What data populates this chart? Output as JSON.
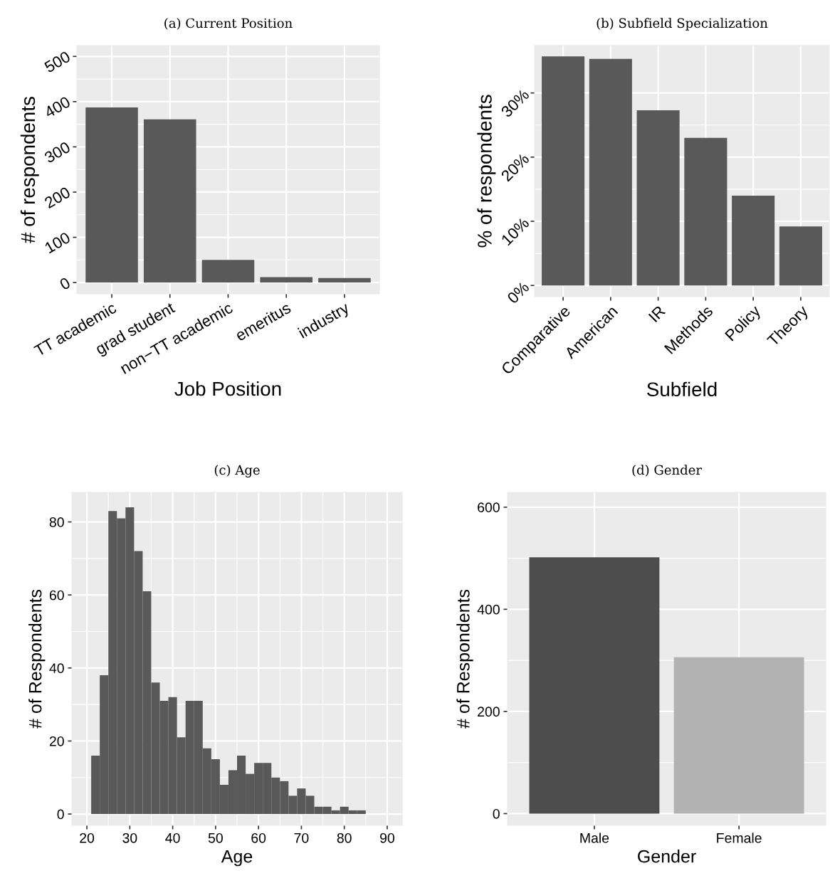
{
  "chart_data": [
    {
      "type": "bar",
      "title": "(a) Current Position",
      "xlabel": "Job Position",
      "ylabel": "# of respondents",
      "categories": [
        "TT academic",
        "grad student",
        "non−TT academic",
        "emeritus",
        "industry"
      ],
      "values": [
        387,
        361,
        50,
        12,
        10
      ],
      "color": "#595959",
      "ylim": [
        -25,
        524
      ],
      "yticks": [
        0,
        100,
        200,
        300,
        400,
        500
      ],
      "grid": true
    },
    {
      "type": "bar",
      "title": "(b) Subfield Specialization",
      "xlabel": "Subfield",
      "ylabel": "% of respondents",
      "categories": [
        "Comparative",
        "American",
        "IR",
        "Methods",
        "Policy",
        "Theory"
      ],
      "values": [
        35.7,
        35.3,
        27.3,
        23.0,
        14.0,
        9.2
      ],
      "color": "#595959",
      "ylim": [
        -1.75,
        37.4
      ],
      "yticks": [
        {
          "value": 0,
          "label": "0%"
        },
        {
          "value": 10,
          "label": "10%"
        },
        {
          "value": 20,
          "label": "20%"
        },
        {
          "value": 30,
          "label": "30%"
        }
      ],
      "grid": true
    },
    {
      "type": "histogram",
      "title": "(c) Age",
      "xlabel": "Age",
      "ylabel": "# of Respondents",
      "bins": [
        21,
        23,
        25,
        27,
        29,
        31,
        33,
        35,
        37,
        39,
        41,
        43,
        45,
        47,
        49,
        51,
        53,
        55,
        57,
        59,
        61,
        63,
        65,
        67,
        69,
        71,
        73,
        75,
        77,
        79,
        81,
        83,
        85,
        87,
        89
      ],
      "values": [
        16,
        38,
        83,
        81,
        84,
        72,
        61,
        36,
        31,
        32,
        21,
        31,
        31,
        18,
        15,
        8,
        12,
        16,
        11,
        14,
        14,
        10,
        9,
        5,
        7,
        5,
        2,
        2,
        1,
        2,
        1,
        1,
        0,
        0
      ],
      "color": "#595959",
      "xlim": [
        16.5,
        93.5
      ],
      "xticks": [
        20,
        30,
        40,
        50,
        60,
        70,
        80,
        90
      ],
      "ylim": [
        -3.1,
        88.1
      ],
      "yticks": [
        0,
        20,
        40,
        60,
        80
      ],
      "grid": true
    },
    {
      "type": "bar",
      "title": "(d) Gender",
      "xlabel": "Gender",
      "ylabel": "# of Respondents",
      "categories": [
        "Male",
        "Female"
      ],
      "values": [
        502,
        306
      ],
      "colors": [
        "#4d4d4d",
        "#b2b2b2"
      ],
      "ylim": [
        -23,
        629
      ],
      "yticks": [
        0,
        200,
        400,
        600
      ],
      "grid": true
    }
  ]
}
